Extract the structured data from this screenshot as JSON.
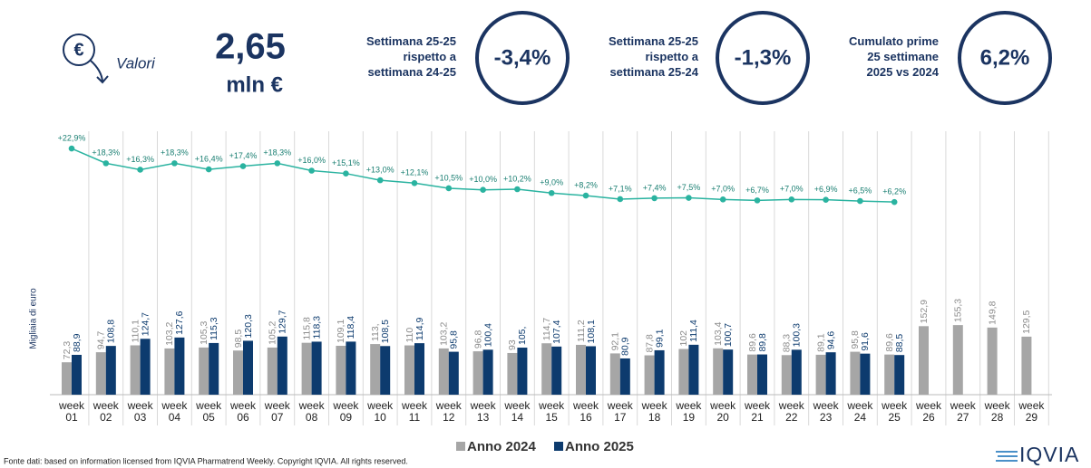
{
  "header": {
    "icon": "€",
    "label": "Valori",
    "value": "2,65",
    "unit": "mln €"
  },
  "kpis": [
    {
      "lines": [
        "Settimana 25-25",
        "rispetto a",
        "settimana 24-25"
      ],
      "value": "-3,4%"
    },
    {
      "lines": [
        "Settimana 25-25",
        "rispetto a",
        "settimana 25-24"
      ],
      "value": "-1,3%"
    },
    {
      "lines": [
        "Cumulato prime",
        "25 settimane",
        "2025 vs 2024"
      ],
      "value": "6,2%"
    }
  ],
  "chart_data": {
    "type": "bar",
    "y_label": "Migliaia di euro",
    "categories": [
      "week 01",
      "week 02",
      "week 03",
      "week 04",
      "week 05",
      "week 06",
      "week 07",
      "week 08",
      "week 09",
      "week 10",
      "week 11",
      "week 12",
      "week 13",
      "week 14",
      "week 15",
      "week 16",
      "week 17",
      "week 18",
      "week 19",
      "week 20",
      "week 21",
      "week 22",
      "week 23",
      "week 24",
      "week 25",
      "week 26",
      "week 27",
      "week 28",
      "week 29"
    ],
    "ylim": [
      0,
      600
    ],
    "y2lim": [
      -54,
      30
    ],
    "series": [
      {
        "name": "Anno 2024",
        "color": "#a6a6a6",
        "values": [
          72.3,
          94.7,
          110.1,
          103.2,
          105.3,
          98.5,
          105.2,
          115.8,
          109.1,
          113,
          110,
          103.2,
          96.8,
          93,
          114.7,
          111.2,
          92.1,
          87.8,
          102,
          103.4,
          89.6,
          88.3,
          89.1,
          95.8,
          89.6,
          152.9,
          155.3,
          149.8,
          129.5
        ],
        "value_labels": [
          "72,3",
          "94,7",
          "110,1",
          "103,2",
          "105,3",
          "98,5",
          "105,2",
          "115,8",
          "109,1",
          "113,",
          "110",
          "103,2",
          "96,8",
          "93",
          "114,7",
          "111,2",
          "92,1",
          "87,8",
          "102",
          "103,4",
          "89,6",
          "88,3",
          "89,1",
          "95,8",
          "89,6",
          "152,9",
          "155,3",
          "149,8",
          "129,5"
        ]
      },
      {
        "name": "Anno 2025",
        "color": "#0d3b6e",
        "values": [
          88.9,
          108.8,
          124.7,
          127.6,
          115.3,
          120.3,
          129.7,
          118.3,
          118.4,
          108.5,
          114.9,
          95.8,
          100.4,
          105,
          107.4,
          108.1,
          80.9,
          99.1,
          111.4,
          100.7,
          89.8,
          100.3,
          94.6,
          91.6,
          88.5,
          null,
          null,
          null,
          null
        ],
        "value_labels": [
          "88,9",
          "108,8",
          "124,7",
          "127,6",
          "115,3",
          "120,3",
          "129,7",
          "118,3",
          "118,4",
          "108,5",
          "114,9",
          "95,8",
          "100,4",
          "105,",
          "107,4",
          "108,1",
          "80,9",
          "99,1",
          "111,4",
          "100,7",
          "89,8",
          "100,3",
          "94,6",
          "91,6",
          "88,5",
          null,
          null,
          null,
          null
        ]
      },
      {
        "color": "#2ab3a0",
        "axis": "y2",
        "values": [
          22.9,
          18.3,
          16.3,
          18.3,
          16.4,
          17.4,
          18.3,
          16.0,
          15.1,
          13.0,
          12.1,
          10.5,
          10.0,
          10.2,
          9.0,
          8.2,
          7.1,
          7.4,
          7.5,
          7.0,
          6.7,
          7.0,
          6.9,
          6.5,
          6.2,
          null,
          null,
          null,
          null
        ],
        "value_labels": [
          "+22,9%",
          "+18,3%",
          "+16,3%",
          "+18,3%",
          "+16,4%",
          "+17,4%",
          "+18,3%",
          "+16,0%",
          "+15,1%",
          "+13,0%",
          "+12,1%",
          "+10,5%",
          "+10,0%",
          "+10,2%",
          "+9,0%",
          "+8,2%",
          "+7,1%",
          "+7,4%",
          "+7,5%",
          "+7,0%",
          "+6,7%",
          "+7,0%",
          "+6,9%",
          "+6,5%",
          "+6,2%",
          null,
          null,
          null,
          null
        ]
      }
    ]
  },
  "footer": {
    "source": "Fonte dati: based on information licensed from IQVIA Pharmatrend Weekly. Copyright IQVIA. All rights reserved.",
    "logo": "IQVIA"
  }
}
